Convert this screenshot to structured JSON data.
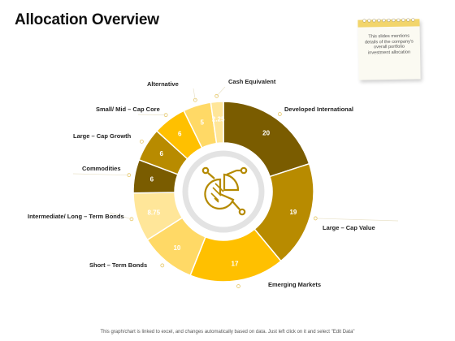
{
  "slide": {
    "title": "Allocation Overview",
    "note_text": "This slides mentions details of the company's overall portfolio investment allocation",
    "footer": "This graph/chart is linked to excel, and changes automatically based on data. Just left click on it and select \"Edit Data\""
  },
  "chart_data": {
    "type": "pie",
    "title": "",
    "slices": [
      {
        "label": "Developed International",
        "value": 20,
        "color": "#7a5c00"
      },
      {
        "label": "Large – Cap Value",
        "value": 19,
        "color": "#b88b00"
      },
      {
        "label": "Emerging Markets",
        "value": 17,
        "color": "#ffc000"
      },
      {
        "label": "Short – Term Bonds",
        "value": 10,
        "color": "#ffd966"
      },
      {
        "label": "Intermediate/ Long – Term Bonds",
        "value": 8.75,
        "color": "#ffe699"
      },
      {
        "label": "Commodities",
        "value": 6,
        "color": "#7a5c00"
      },
      {
        "label": "Large – Cap Growth",
        "value": 6,
        "color": "#b88b00"
      },
      {
        "label": "Small/ Mid – Cap Core",
        "value": 6,
        "color": "#ffc000"
      },
      {
        "label": "Alternative",
        "value": 5,
        "color": "#ffd966"
      },
      {
        "label": "Cash Equivalent",
        "value": 2.25,
        "color": "#ffe699"
      }
    ],
    "center_icon": "pie-chart-icon"
  }
}
